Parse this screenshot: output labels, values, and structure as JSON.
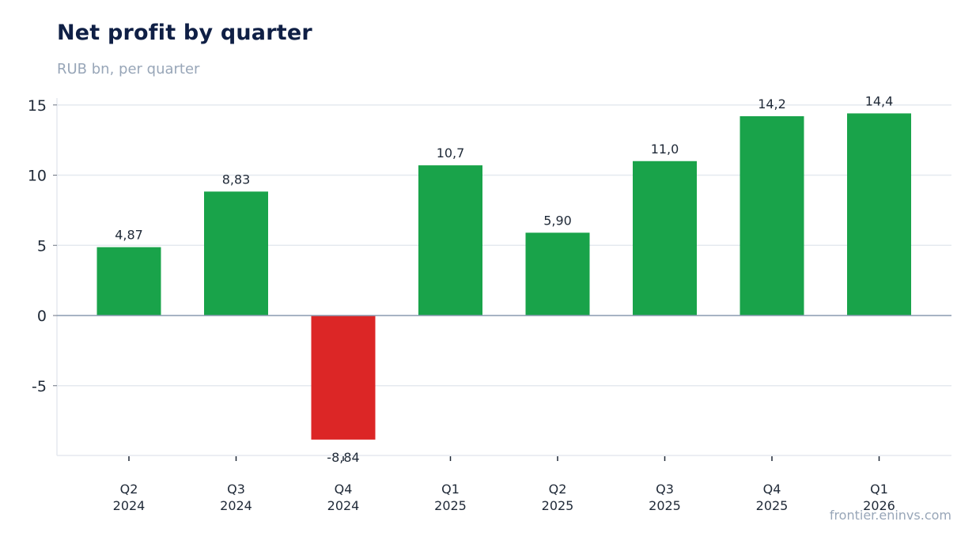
{
  "header": {
    "title": "Net profit by quarter",
    "subtitle": "RUB bn, per quarter"
  },
  "footer": {
    "source": "frontier.eninvs.com"
  },
  "colors": {
    "positive": "#19a34a",
    "negative": "#dc2626",
    "grid": "#e5e9ef",
    "zero_line": "#8a9ab0"
  },
  "chart_data": {
    "type": "bar",
    "title": "Net profit by quarter",
    "subtitle": "RUB bn, per quarter",
    "categories": [
      [
        "Q2",
        "2024"
      ],
      [
        "Q3",
        "2024"
      ],
      [
        "Q4",
        "2024"
      ],
      [
        "Q1",
        "2025"
      ],
      [
        "Q2",
        "2025"
      ],
      [
        "Q3",
        "2025"
      ],
      [
        "Q4",
        "2025"
      ],
      [
        "Q1",
        "2026"
      ]
    ],
    "values": [
      4.87,
      8.83,
      -8.84,
      10.7,
      5.9,
      11.0,
      14.2,
      14.4
    ],
    "value_labels": [
      "4,87",
      "8,83",
      "-8,84",
      "10,7",
      "5,90",
      "11,0",
      "14,2",
      "14,4"
    ],
    "y_ticks": [
      15,
      10,
      5,
      0,
      -5
    ],
    "ylim": [
      -10,
      15.5
    ],
    "grid": true,
    "legend": "none"
  }
}
